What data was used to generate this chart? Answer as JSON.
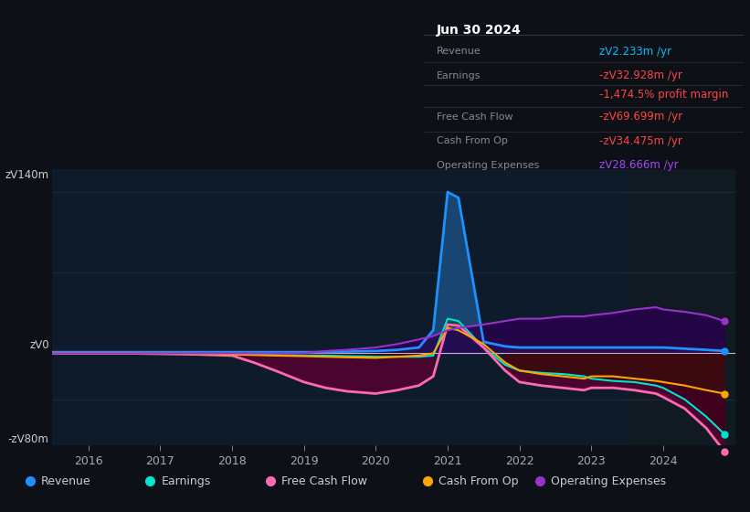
{
  "bg_color": "#0d1117",
  "plot_bg_color": "#0d1b2a",
  "shade_color": "#111a22",
  "title_text": "Jun 30 2024",
  "tooltip_rows": [
    {
      "label": "Revenue",
      "value": "zᐯ2.233m /yr",
      "color": "#00bfff"
    },
    {
      "label": "Earnings",
      "value": "-zᐯ32.928m /yr",
      "color": "#ff4444"
    },
    {
      "label": "",
      "value": "-1,474.5% profit margin",
      "color": "#ff4444"
    },
    {
      "label": "Free Cash Flow",
      "value": "-zᐯ69.699m /yr",
      "color": "#ff4444"
    },
    {
      "label": "Cash From Op",
      "value": "-zᐯ34.475m /yr",
      "color": "#ff4444"
    },
    {
      "label": "Operating Expenses",
      "value": "zᐯ28.666m /yr",
      "color": "#aa44ff"
    }
  ],
  "ylabel_top": "zᐯ140m",
  "ylabel_zero": "zᐯ0",
  "ylabel_bot": "-zᐯ80m",
  "ylim": [
    -80,
    160
  ],
  "xlim": [
    2015.5,
    2025.0
  ],
  "xticks": [
    2016,
    2017,
    2018,
    2019,
    2020,
    2021,
    2022,
    2023,
    2024
  ],
  "legend": [
    {
      "label": "Revenue",
      "color": "#1e90ff"
    },
    {
      "label": "Earnings",
      "color": "#00e5cc"
    },
    {
      "label": "Free Cash Flow",
      "color": "#ff69b4"
    },
    {
      "label": "Cash From Op",
      "color": "#ffa500"
    },
    {
      "label": "Operating Expenses",
      "color": "#9932cc"
    }
  ],
  "years": [
    2015.5,
    2016.0,
    2016.5,
    2017.0,
    2017.5,
    2018.0,
    2018.3,
    2018.6,
    2019.0,
    2019.3,
    2019.6,
    2020.0,
    2020.3,
    2020.6,
    2020.8,
    2021.0,
    2021.15,
    2021.5,
    2021.8,
    2022.0,
    2022.3,
    2022.6,
    2022.9,
    2023.0,
    2023.3,
    2023.6,
    2023.9,
    2024.0,
    2024.3,
    2024.6,
    2024.85
  ],
  "revenue": [
    1,
    1,
    1,
    1,
    1,
    1,
    1,
    1,
    1,
    1,
    1.5,
    2,
    3,
    5,
    20,
    140,
    135,
    10,
    6,
    5,
    5,
    5,
    5,
    5,
    5,
    5,
    5,
    5,
    4,
    3,
    2
  ],
  "earnings": [
    0,
    0,
    0,
    0,
    -0.5,
    -1,
    -1,
    -1.5,
    -2,
    -2,
    -2.5,
    -3,
    -3,
    -3,
    -2,
    30,
    28,
    5,
    -10,
    -15,
    -17,
    -18,
    -20,
    -22,
    -24,
    -25,
    -28,
    -30,
    -40,
    -55,
    -70
  ],
  "fcf": [
    0,
    0,
    0,
    -0.5,
    -1,
    -2,
    -8,
    -15,
    -25,
    -30,
    -33,
    -35,
    -32,
    -28,
    -20,
    25,
    24,
    5,
    -15,
    -25,
    -28,
    -30,
    -32,
    -30,
    -30,
    -32,
    -35,
    -38,
    -48,
    -65,
    -85
  ],
  "cash_from_op": [
    0,
    0,
    0,
    -0.3,
    -0.5,
    -1,
    -1.5,
    -2,
    -2.5,
    -3,
    -3.5,
    -4,
    -3,
    -2,
    0,
    22,
    20,
    8,
    -8,
    -15,
    -18,
    -20,
    -22,
    -20,
    -20,
    -22,
    -24,
    -25,
    -28,
    -32,
    -35
  ],
  "opex": [
    0,
    0,
    0,
    0,
    0,
    0,
    0,
    0,
    0,
    2,
    3,
    5,
    8,
    12,
    15,
    20,
    22,
    25,
    28,
    30,
    30,
    32,
    32,
    33,
    35,
    38,
    40,
    38,
    36,
    33,
    28
  ]
}
